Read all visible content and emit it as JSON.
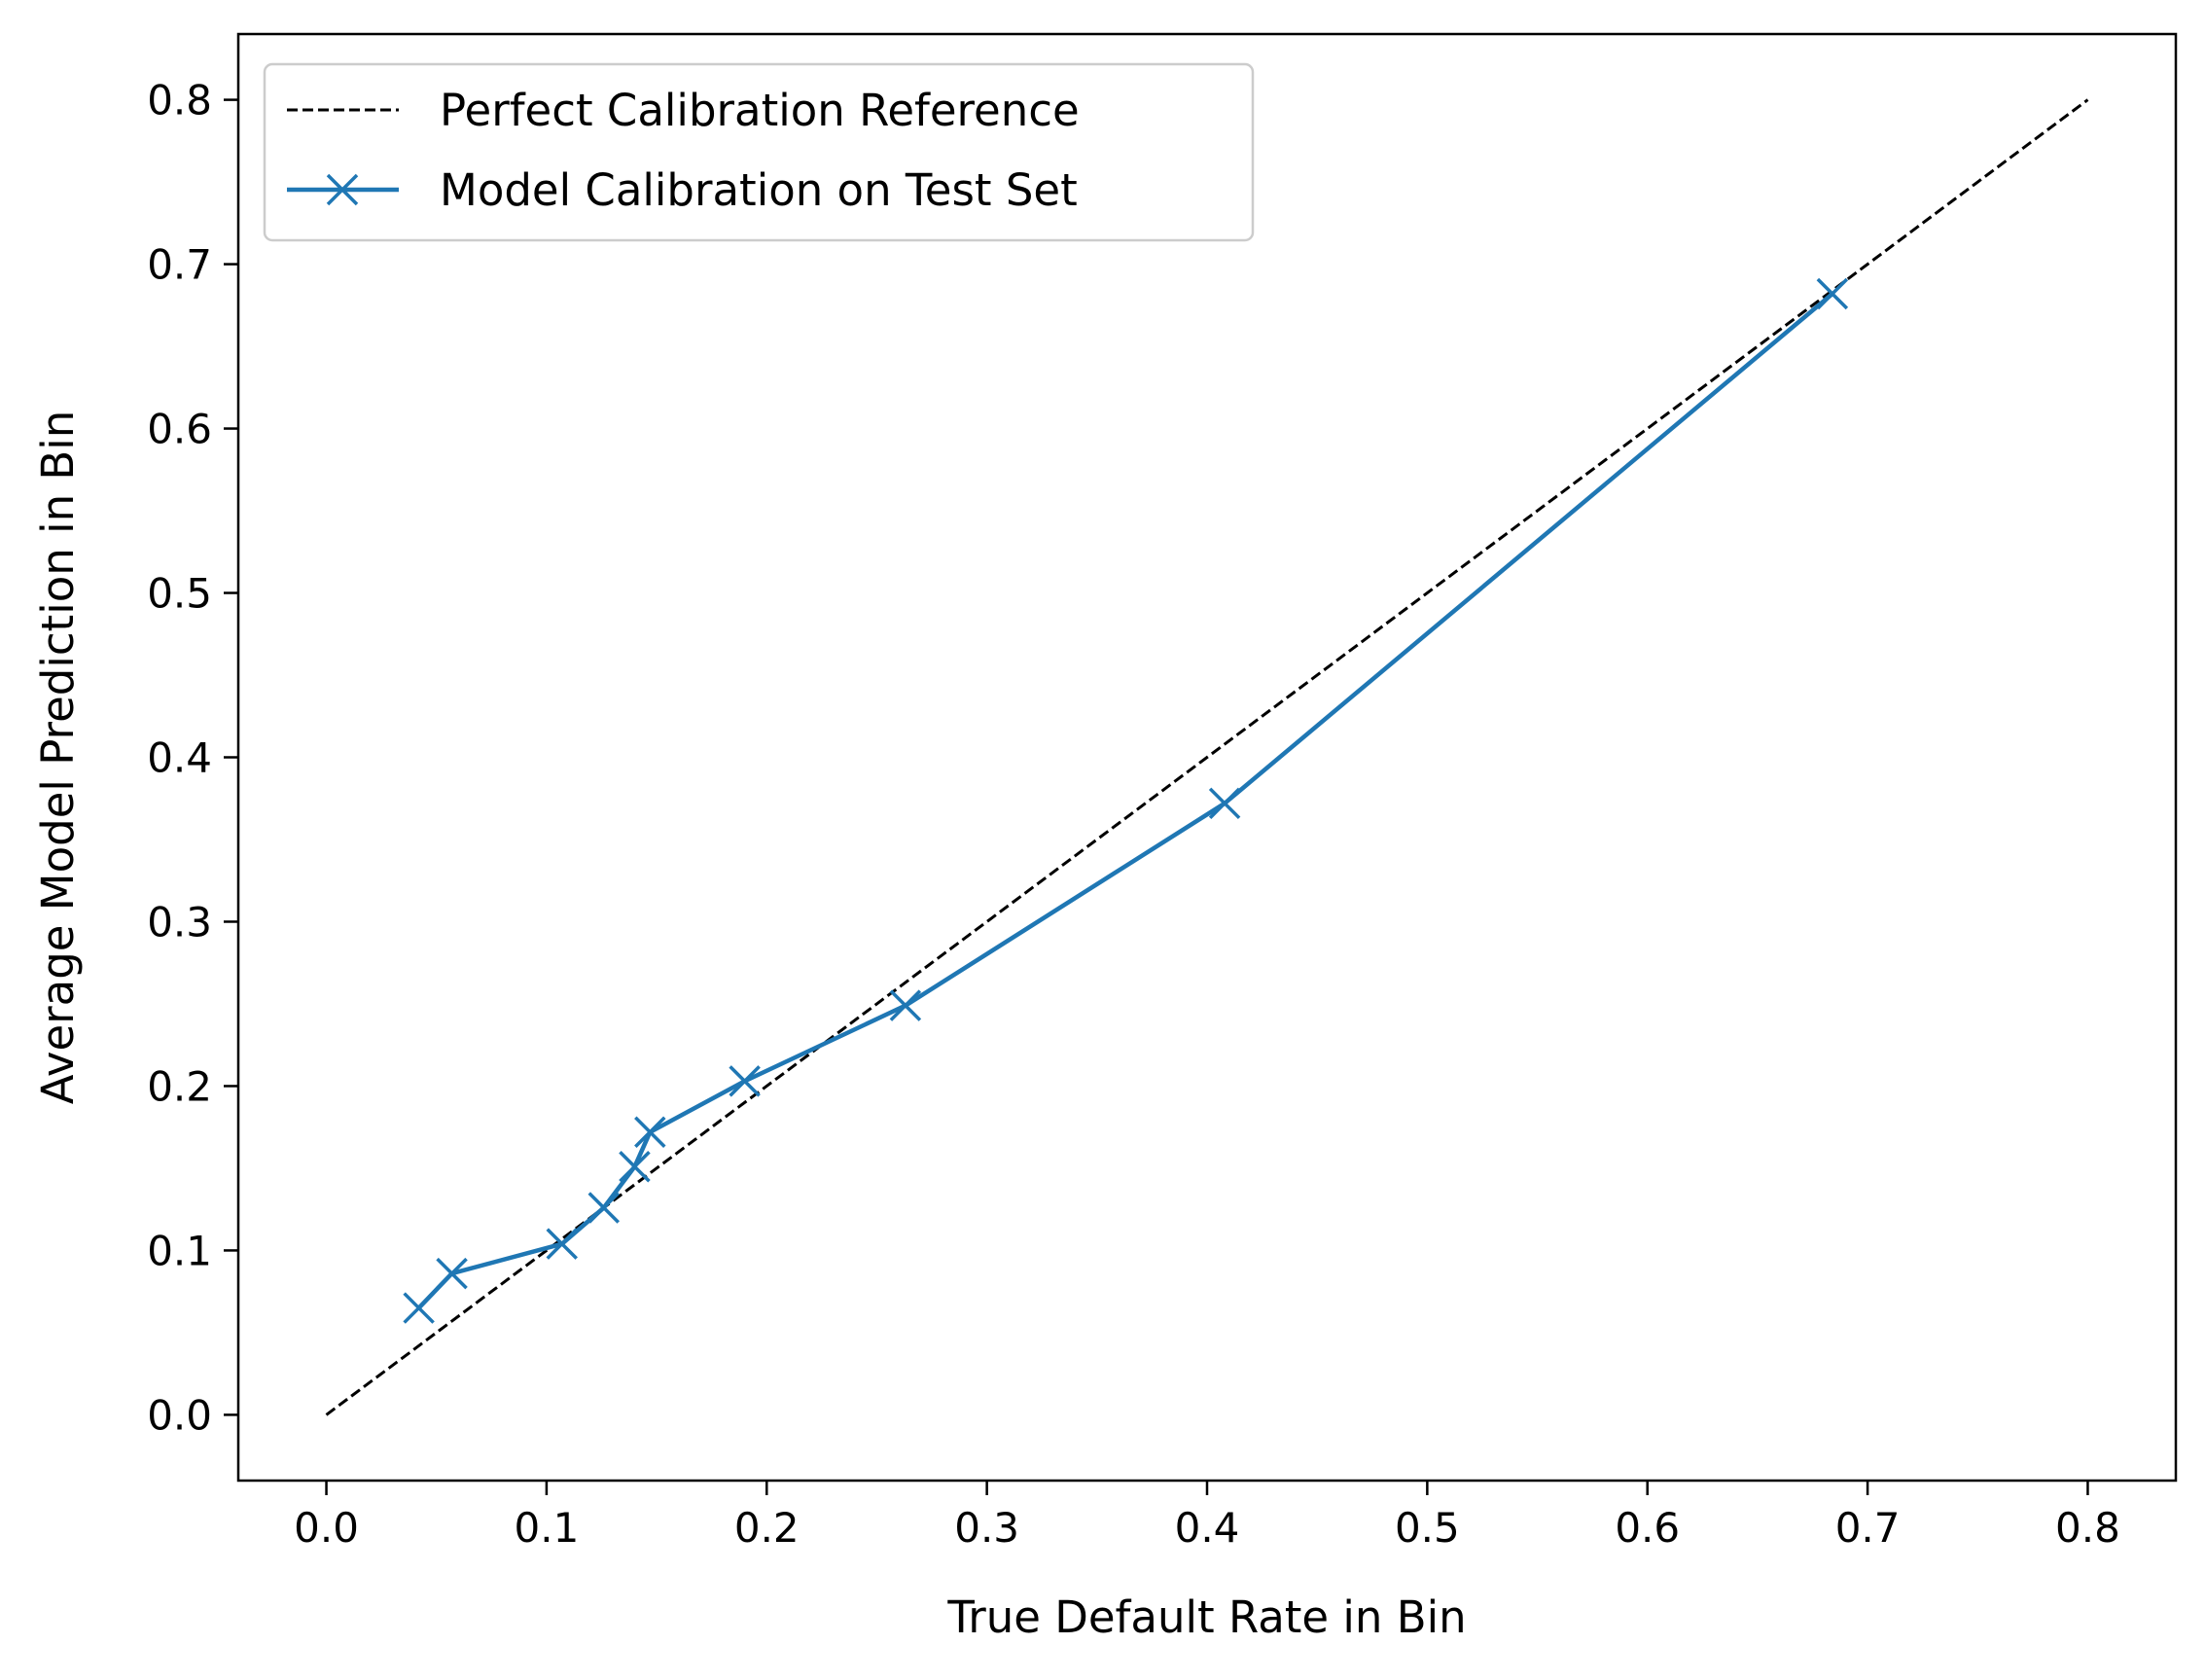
{
  "chart_data": {
    "type": "line",
    "title": "",
    "xlabel": "True Default Rate in Bin",
    "ylabel": "Average Model Prediction in Bin",
    "xlim": [
      -0.04,
      0.84
    ],
    "ylim": [
      -0.04,
      0.84
    ],
    "x_ticks": [
      "0.0",
      "0.1",
      "0.2",
      "0.3",
      "0.4",
      "0.5",
      "0.6",
      "0.7",
      "0.8"
    ],
    "y_ticks": [
      "0.0",
      "0.1",
      "0.2",
      "0.3",
      "0.4",
      "0.5",
      "0.6",
      "0.7",
      "0.8"
    ],
    "grid": false,
    "legend_position": "upper-left",
    "series": [
      {
        "name": "Perfect Calibration Reference",
        "style": "dashed",
        "color": "#000000",
        "marker": "none",
        "x": [
          0.0,
          0.8
        ],
        "y": [
          0.0,
          0.8
        ]
      },
      {
        "name": "Model Calibration on Test Set",
        "style": "solid",
        "color": "#1f77b4",
        "marker": "x",
        "x": [
          0.042,
          0.057,
          0.107,
          0.126,
          0.14,
          0.147,
          0.19,
          0.263,
          0.408,
          0.684
        ],
        "y": [
          0.065,
          0.086,
          0.104,
          0.126,
          0.151,
          0.172,
          0.203,
          0.249,
          0.372,
          0.682
        ]
      }
    ]
  }
}
